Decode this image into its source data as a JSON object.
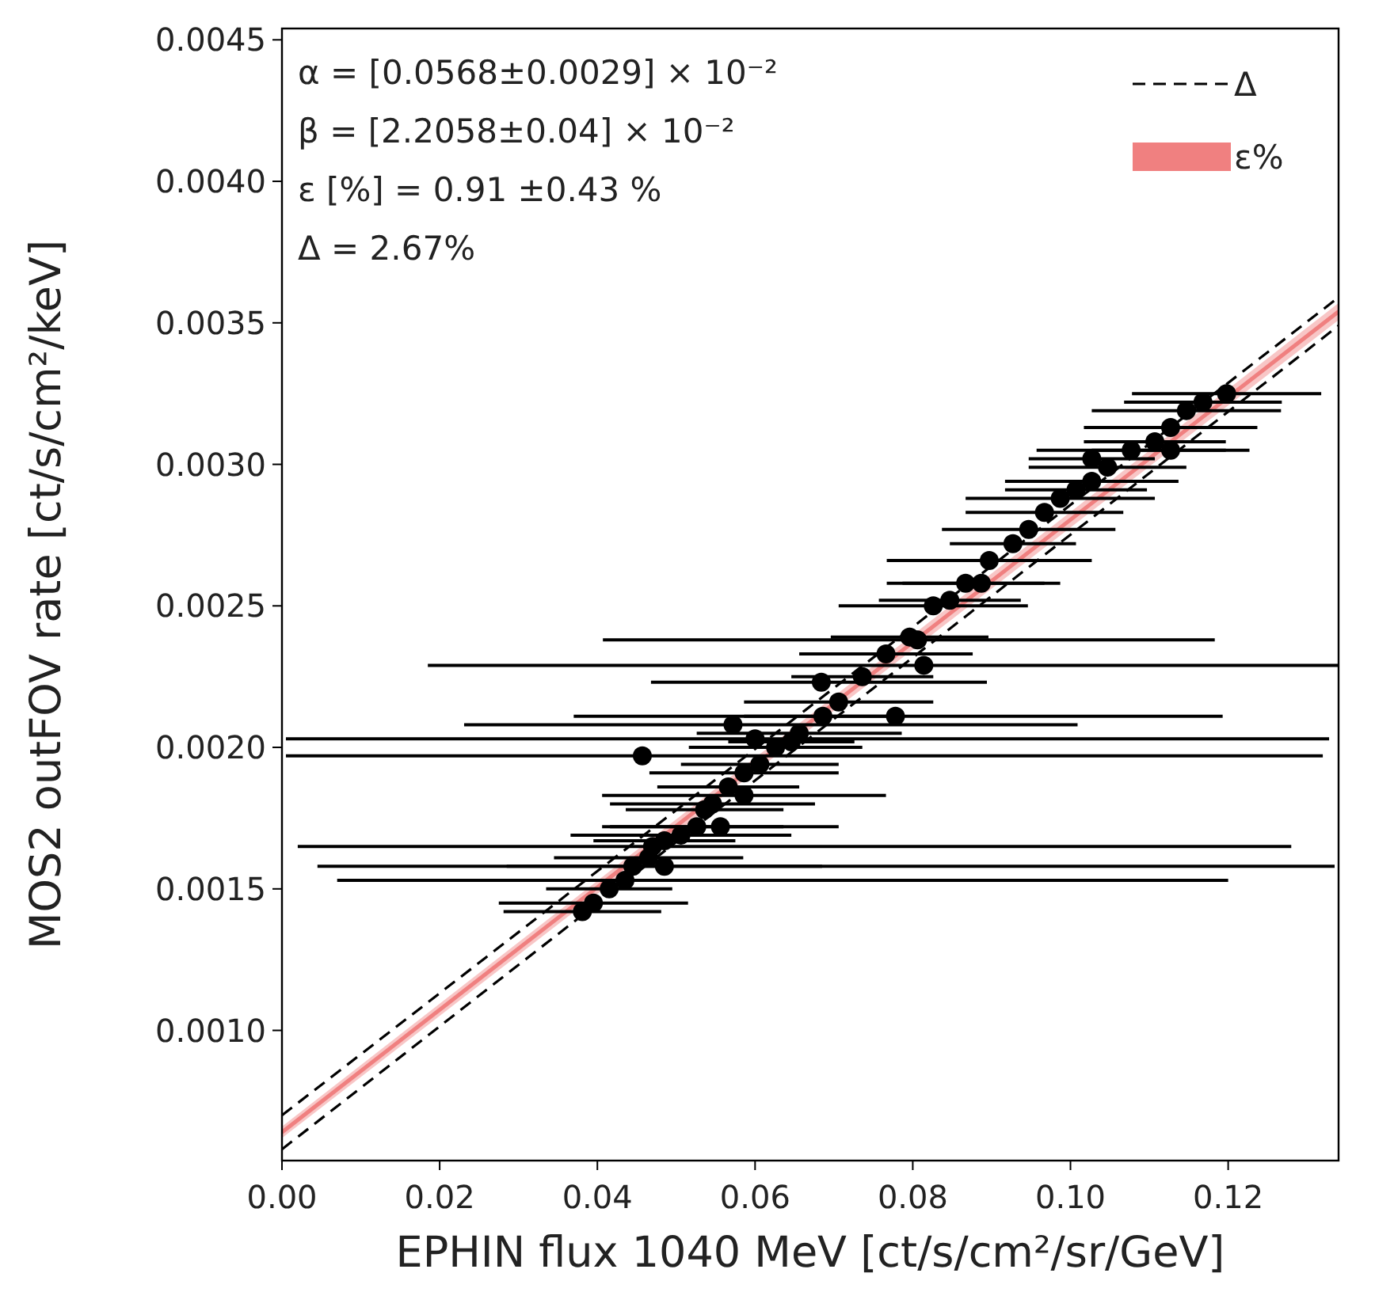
{
  "chart_data": {
    "type": "scatter",
    "xlabel": "EPHIN flux 1040 MeV [ct/s/cm²/sr/GeV]",
    "ylabel": "MOS2 outFOV rate [ct/s/cm²/keV]",
    "annotations": [
      "α = [0.0568±0.0029] × 10⁻²",
      "β = [2.2058±0.04] × 10⁻²",
      "ε [%] = 0.91 ±0.43 %",
      "Δ = 2.67%"
    ],
    "xlim": [
      0,
      0.134
    ],
    "xticks": [
      {
        "value": 0,
        "label": "0.00"
      },
      {
        "value": 0.02,
        "label": "0.02"
      },
      {
        "value": 0.04,
        "label": "0.04"
      },
      {
        "value": 0.06,
        "label": "0.06"
      },
      {
        "value": 0.08,
        "label": "0.08"
      },
      {
        "value": 0.1,
        "label": "0.10"
      },
      {
        "value": 0.12,
        "label": "0.12"
      }
    ],
    "ylim": [
      0.00054,
      0.00454
    ],
    "yticks": [
      {
        "value": 0.001,
        "label": "0.0010"
      },
      {
        "value": 0.0015,
        "label": "0.0015"
      },
      {
        "value": 0.002,
        "label": "0.0020"
      },
      {
        "value": 0.0025,
        "label": "0.0025"
      },
      {
        "value": 0.003,
        "label": "0.0030"
      },
      {
        "value": 0.0035,
        "label": "0.0035"
      },
      {
        "value": 0.004,
        "label": "0.0040"
      },
      {
        "value": 0.0045,
        "label": "0.0045"
      }
    ],
    "grid": false,
    "legend": "top right",
    "series": [
      {
        "type": "line",
        "name": "Δ",
        "color": "#000000",
        "x": [
          0,
          0.134
        ],
        "values": [
          0.0007,
          0.00359
        ],
        "line_style": "dashed",
        "marker": "none"
      },
      {
        "type": "line",
        "name": "ε%",
        "color": "#f08080",
        "x": [
          0,
          0.134
        ],
        "values": [
          0.00064,
          0.00354
        ],
        "lower": [
          0.00062,
          0.00351
        ],
        "upper": [
          0.00066,
          0.00357
        ],
        "line_style": "solid",
        "marker": "none"
      },
      {
        "type": "line",
        "color": "#000000",
        "x": [
          0,
          0.134
        ],
        "values": [
          0.00058,
          0.00349
        ],
        "line_style": "dashed",
        "marker": "none"
      },
      {
        "color": "#000000",
        "marker": "circle",
        "x": [
          0.0381,
          0.0395,
          0.0415,
          0.0435,
          0.0465,
          0.0485,
          0.0506,
          0.0526,
          0.0536,
          0.0546,
          0.0566,
          0.0586,
          0.0606,
          0.0626,
          0.0646,
          0.0656,
          0.0686,
          0.0706,
          0.0736,
          0.0766,
          0.0796,
          0.0826,
          0.0847,
          0.0867,
          0.0897,
          0.0927,
          0.0947,
          0.0967,
          0.0987,
          0.1007,
          0.1027,
          0.1047,
          0.1077,
          0.1107,
          0.1127,
          0.1168,
          0.1198,
          0.0485,
          0.0556,
          0.0586,
          0.0887,
          0.1027,
          0.1127,
          0.1147,
          0.0457,
          0.0572,
          0.06,
          0.0778,
          0.0684,
          0.0814,
          0.0806,
          0.047,
          0.0445
        ],
        "values": [
          0.00142,
          0.00145,
          0.0015,
          0.00153,
          0.00161,
          0.00167,
          0.00169,
          0.00172,
          0.00178,
          0.0018,
          0.00186,
          0.00191,
          0.00194,
          0.002,
          0.00202,
          0.00205,
          0.00211,
          0.00216,
          0.00225,
          0.00233,
          0.00239,
          0.0025,
          0.00252,
          0.00258,
          0.00266,
          0.00272,
          0.00277,
          0.00283,
          0.00288,
          0.00291,
          0.00294,
          0.00299,
          0.00305,
          0.00308,
          0.00313,
          0.00322,
          0.00325,
          0.00158,
          0.00172,
          0.00183,
          0.00258,
          0.00302,
          0.00305,
          0.00319,
          0.00197,
          0.00208,
          0.00203,
          0.00211,
          0.00223,
          0.00229,
          0.00238,
          0.00165,
          0.00158
        ],
        "xerrors": [
          0.01,
          0.012,
          0.008,
          [
            0.007,
            0.12
          ],
          0.012,
          0.009,
          0.014,
          0.011,
          0.01,
          0.013,
          0.009,
          0.012,
          0.01,
          0.011,
          0.008,
          0.013,
          0.01,
          0.012,
          0.009,
          0.011,
          0.01,
          0.012,
          0.009,
          0.01,
          0.013,
          0.008,
          0.011,
          0.01,
          0.012,
          0.009,
          0.011,
          0.01,
          0.012,
          0.009,
          0.011,
          0.01,
          0.012,
          0.02,
          0.015,
          0.018,
          0.01,
          0.008,
          0.01,
          0.012,
          [
            0.0005,
            0.132
          ],
          [
            0.0231,
            0.1009
          ],
          [
            0.0005,
            0.1328
          ],
          [
            0.037,
            0.1193
          ],
          [
            0.0468,
            0.0894
          ],
          [
            0.0185,
            0.1339
          ],
          [
            0.0407,
            0.1183
          ],
          [
            0.002,
            0.128
          ],
          [
            0.0045,
            0.1335
          ]
        ]
      }
    ]
  }
}
